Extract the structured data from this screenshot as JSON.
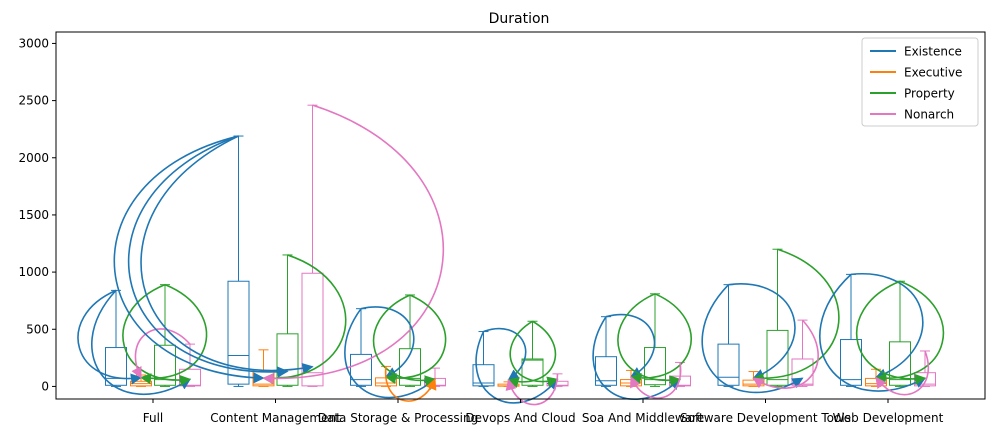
{
  "chart_data": {
    "type": "box",
    "title": "Duration",
    "xlabel": "",
    "ylabel": "",
    "ylim": [
      -110,
      3100
    ],
    "yticks": [
      0,
      500,
      1000,
      1500,
      2000,
      2500,
      3000
    ],
    "grid": false,
    "legend_position": "top-right",
    "categories": [
      "Full",
      "Content Management",
      "Data Storage & Processing",
      "Devops And Cloud",
      "Soa And Middleware",
      "Software Development Tools",
      "Web Development"
    ],
    "series": [
      {
        "name": "Existence",
        "color": "#1f77b4",
        "boxes": [
          {
            "min": 0,
            "q1": 10,
            "median": 70,
            "q3": 340,
            "max": 840
          },
          {
            "min": 0,
            "q1": 20,
            "median": 270,
            "q3": 920,
            "max": 2190
          },
          {
            "min": 0,
            "q1": 10,
            "median": 60,
            "q3": 280,
            "max": 680
          },
          {
            "min": 0,
            "q1": 5,
            "median": 30,
            "q3": 190,
            "max": 480
          },
          {
            "min": 0,
            "q1": 10,
            "median": 50,
            "q3": 260,
            "max": 610
          },
          {
            "min": 0,
            "q1": 10,
            "median": 80,
            "q3": 370,
            "max": 890
          },
          {
            "min": 0,
            "q1": 10,
            "median": 60,
            "q3": 410,
            "max": 980
          }
        ]
      },
      {
        "name": "Executive",
        "color": "#ff7f0e",
        "boxes": [
          {
            "min": 0,
            "q1": 5,
            "median": 25,
            "q3": 45,
            "max": 100
          },
          {
            "min": 0,
            "q1": 5,
            "median": 20,
            "q3": 130,
            "max": 320
          },
          {
            "min": 0,
            "q1": 5,
            "median": 30,
            "q3": 75,
            "max": 175
          },
          {
            "min": 0,
            "q1": 2,
            "median": 5,
            "q3": 20,
            "max": 40
          },
          {
            "min": 0,
            "q1": 5,
            "median": 30,
            "q3": 60,
            "max": 140
          },
          {
            "min": 0,
            "q1": 5,
            "median": 20,
            "q3": 55,
            "max": 130
          },
          {
            "min": 0,
            "q1": 5,
            "median": 25,
            "q3": 70,
            "max": 150
          }
        ]
      },
      {
        "name": "Property",
        "color": "#2ca02c",
        "boxes": [
          {
            "min": 0,
            "q1": 10,
            "median": 60,
            "q3": 360,
            "max": 890
          },
          {
            "min": 0,
            "q1": 10,
            "median": 80,
            "q3": 460,
            "max": 1150
          },
          {
            "min": 0,
            "q1": 10,
            "median": 70,
            "q3": 330,
            "max": 800
          },
          {
            "min": 0,
            "q1": 10,
            "median": 230,
            "q3": 240,
            "max": 570
          },
          {
            "min": 0,
            "q1": 15,
            "median": 60,
            "q3": 340,
            "max": 810
          },
          {
            "min": 0,
            "q1": 10,
            "median": 60,
            "q3": 490,
            "max": 1200
          },
          {
            "min": 0,
            "q1": 10,
            "median": 60,
            "q3": 390,
            "max": 920
          }
        ]
      },
      {
        "name": "Nonarch",
        "color": "#e377c2",
        "boxes": [
          {
            "min": 0,
            "q1": 5,
            "median": 10,
            "q3": 150,
            "max": 370
          },
          {
            "min": 0,
            "q1": 5,
            "median": 120,
            "q3": 990,
            "max": 2460
          },
          {
            "min": 0,
            "q1": 5,
            "median": 10,
            "q3": 70,
            "max": 160
          },
          {
            "min": 0,
            "q1": 5,
            "median": 10,
            "q3": 45,
            "max": 110
          },
          {
            "min": 0,
            "q1": 5,
            "median": 10,
            "q3": 90,
            "max": 210
          },
          {
            "min": 0,
            "q1": 10,
            "median": 20,
            "q3": 240,
            "max": 580
          },
          {
            "min": 0,
            "q1": 5,
            "median": 20,
            "q3": 120,
            "max": 310
          }
        ]
      }
    ],
    "annotations": [
      {
        "from_series": 0,
        "to_series": 1,
        "category": 0,
        "color": "#1f77b4",
        "dir": 1
      },
      {
        "from_series": 0,
        "to_series": 3,
        "category": 0,
        "color": "#1f77b4",
        "dir": 1
      },
      {
        "from_series": 2,
        "to_series": 1,
        "category": 0,
        "color": "#2ca02c",
        "dir": -1
      },
      {
        "from_series": 2,
        "to_series": 3,
        "category": 0,
        "color": "#2ca02c",
        "dir": 1
      },
      {
        "from_series": 3,
        "to_series": 1,
        "category": 0,
        "color": "#e377c2",
        "dir": 1
      },
      {
        "from_series": 0,
        "to_series": 3,
        "category": 1,
        "color": "#1f77b4",
        "dir": 1
      },
      {
        "from_series": 0,
        "to_series": 1,
        "category": 1,
        "color": "#1f77b4",
        "dir": 1
      },
      {
        "from_series": 0,
        "to_series": 2,
        "category": 1,
        "color": "#1f77b4",
        "dir": 1
      },
      {
        "from_series": 2,
        "to_series": 1,
        "category": 1,
        "color": "#2ca02c",
        "dir": -1
      },
      {
        "from_series": 3,
        "to_series": 1,
        "category": 1,
        "color": "#e377c2",
        "dir": -1
      },
      {
        "from_series": 0,
        "to_series": 1,
        "category": 2,
        "color": "#1f77b4",
        "dir": -1
      },
      {
        "from_series": 0,
        "to_series": 3,
        "category": 2,
        "color": "#1f77b4",
        "dir": 1
      },
      {
        "from_series": 2,
        "to_series": 1,
        "category": 2,
        "color": "#2ca02c",
        "dir": -1
      },
      {
        "from_series": 2,
        "to_series": 3,
        "category": 2,
        "color": "#2ca02c",
        "dir": 1
      },
      {
        "from_series": 1,
        "to_series": 3,
        "category": 2,
        "color": "#ff7f0e",
        "dir": 1
      },
      {
        "from_series": 0,
        "to_series": 1,
        "category": 3,
        "color": "#1f77b4",
        "dir": -1
      },
      {
        "from_series": 0,
        "to_series": 3,
        "category": 3,
        "color": "#1f77b4",
        "dir": 1
      },
      {
        "from_series": 2,
        "to_series": 1,
        "category": 3,
        "color": "#2ca02c",
        "dir": -1
      },
      {
        "from_series": 2,
        "to_series": 3,
        "category": 3,
        "color": "#2ca02c",
        "dir": 1
      },
      {
        "from_series": 3,
        "to_series": 1,
        "category": 3,
        "color": "#e377c2",
        "dir": -1
      },
      {
        "from_series": 0,
        "to_series": 1,
        "category": 4,
        "color": "#1f77b4",
        "dir": -1
      },
      {
        "from_series": 0,
        "to_series": 3,
        "category": 4,
        "color": "#1f77b4",
        "dir": 1
      },
      {
        "from_series": 2,
        "to_series": 1,
        "category": 4,
        "color": "#2ca02c",
        "dir": -1
      },
      {
        "from_series": 2,
        "to_series": 3,
        "category": 4,
        "color": "#2ca02c",
        "dir": 1
      },
      {
        "from_series": 3,
        "to_series": 1,
        "category": 4,
        "color": "#e377c2",
        "dir": -1
      },
      {
        "from_series": 0,
        "to_series": 1,
        "category": 5,
        "color": "#1f77b4",
        "dir": -1
      },
      {
        "from_series": 0,
        "to_series": 3,
        "category": 5,
        "color": "#1f77b4",
        "dir": 1
      },
      {
        "from_series": 2,
        "to_series": 1,
        "category": 5,
        "color": "#2ca02c",
        "dir": -1
      },
      {
        "from_series": 3,
        "to_series": 1,
        "category": 5,
        "color": "#e377c2",
        "dir": -1
      },
      {
        "from_series": 0,
        "to_series": 1,
        "category": 6,
        "color": "#1f77b4",
        "dir": -1
      },
      {
        "from_series": 0,
        "to_series": 3,
        "category": 6,
        "color": "#1f77b4",
        "dir": 1
      },
      {
        "from_series": 2,
        "to_series": 1,
        "category": 6,
        "color": "#2ca02c",
        "dir": -1
      },
      {
        "from_series": 2,
        "to_series": 3,
        "category": 6,
        "color": "#2ca02c",
        "dir": 1
      },
      {
        "from_series": 3,
        "to_series": 1,
        "category": 6,
        "color": "#e377c2",
        "dir": -1
      }
    ]
  }
}
